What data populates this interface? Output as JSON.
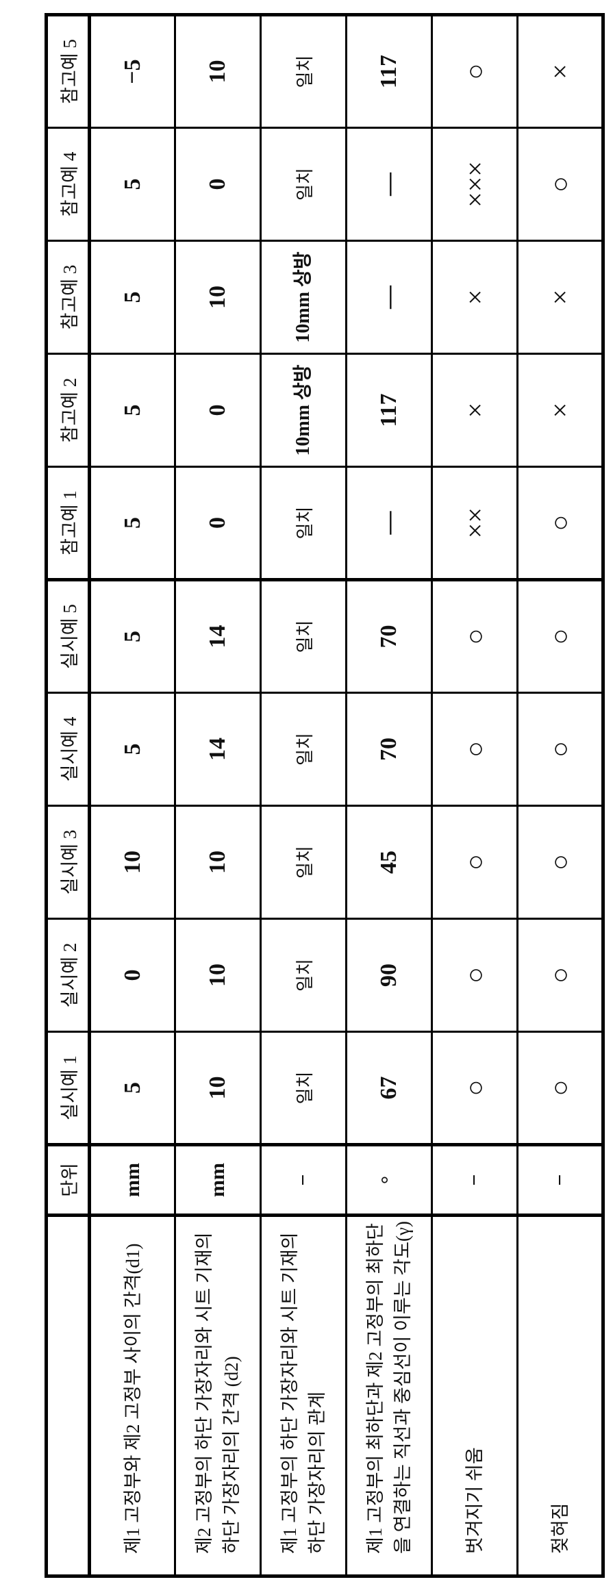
{
  "header": {
    "unit_label": "단위",
    "columns": [
      "실시예 1",
      "실시예 2",
      "실시예 3",
      "실시예 4",
      "실시예 5",
      "참고예 1",
      "참고예 2",
      "참고예 3",
      "참고예 4",
      "참고예 5"
    ]
  },
  "rows": [
    {
      "label": "제1 고정부와 제2 고정부 사이의 간격(d1)",
      "unit": "mm",
      "values": [
        "5",
        "0",
        "10",
        "5",
        "5",
        "5",
        "5",
        "5",
        "5",
        "−5"
      ]
    },
    {
      "label": "제2 고정부의 하단 가장자리와 시트 기재의 하단 가장자리의 간격 (d2)",
      "unit": "mm",
      "values": [
        "10",
        "10",
        "10",
        "14",
        "14",
        "0",
        "0",
        "10",
        "0",
        "10"
      ]
    },
    {
      "label": "제1 고정부의 하단 가장자리와 시트 기재의 하단 가장자리의 관계",
      "unit": "−",
      "values": [
        "일치",
        "일치",
        "일치",
        "일치",
        "일치",
        "일치",
        "10mm 상방",
        "10mm 상방",
        "일치",
        "일치"
      ]
    },
    {
      "label": "제1 고정부의 최하단과 제2 고정부의 최하단을 연결하는 직선과 중심선이 이루는 각도(γ)",
      "unit": "°",
      "values": [
        "67",
        "90",
        "45",
        "70",
        "70",
        "—",
        "117",
        "—",
        "—",
        "117"
      ]
    },
    {
      "label": "벗겨지기 쉬움",
      "unit": "−",
      "values": [
        "○",
        "○",
        "○",
        "○",
        "○",
        "××",
        "×",
        "×",
        "×××",
        "○"
      ]
    },
    {
      "label": "젖혀짐",
      "unit": "−",
      "values": [
        "○",
        "○",
        "○",
        "○",
        "○",
        "○",
        "×",
        "×",
        "○",
        "×"
      ]
    }
  ]
}
